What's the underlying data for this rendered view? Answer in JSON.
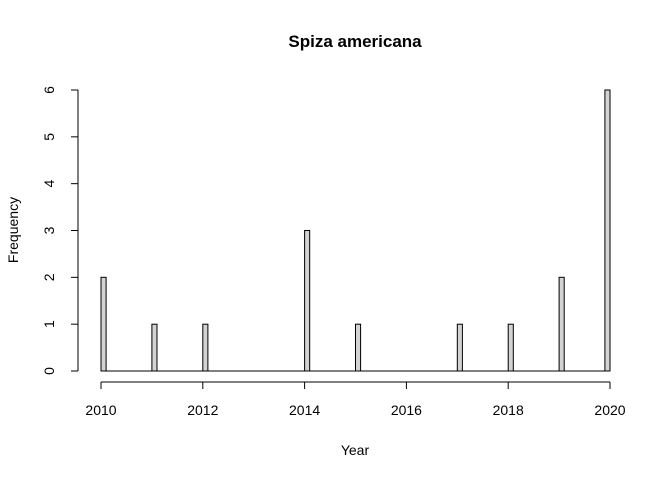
{
  "chart_data": {
    "type": "bar",
    "title": "Spiza americana",
    "xlabel": "Year",
    "ylabel": "Frequency",
    "x": [
      2010,
      2011,
      2012,
      2014,
      2015,
      2017,
      2018,
      2019,
      2020
    ],
    "values": [
      2,
      1,
      1,
      3,
      1,
      1,
      1,
      2,
      6
    ],
    "xlim": [
      2010,
      2020
    ],
    "ylim": [
      0,
      6
    ],
    "xticks": [
      "2010",
      "2012",
      "2014",
      "2016",
      "2018",
      "2020"
    ],
    "yticks": [
      "0",
      "1",
      "2",
      "3",
      "4",
      "5",
      "6"
    ],
    "bar_fill": "#d3d3d3",
    "grid": false,
    "legend": "none"
  }
}
